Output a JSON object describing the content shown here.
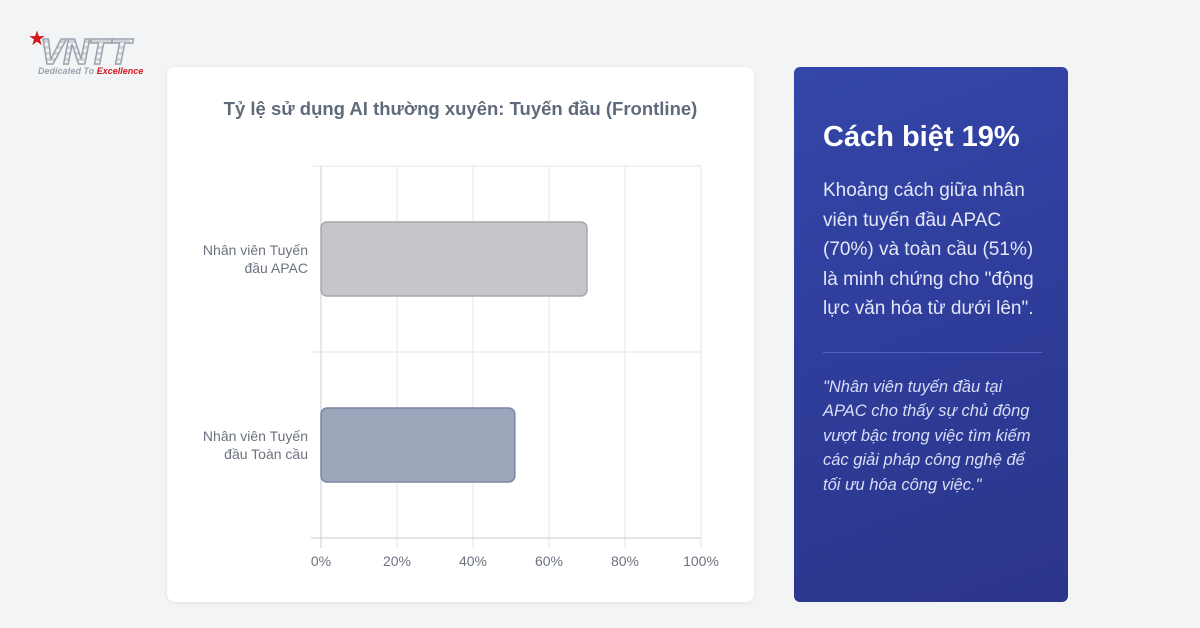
{
  "logo": {
    "wordmark": "VNTT",
    "tagline_part1": "Dedicated To ",
    "tagline_part2": "Excellence"
  },
  "chart_data": {
    "type": "bar",
    "orientation": "horizontal",
    "title": "Tỷ lệ sử dụng AI thường xuyên: Tuyến đầu (Frontline)",
    "categories": [
      [
        "Nhân viên Tuyến",
        "đầu APAC"
      ],
      [
        "Nhân viên Tuyến",
        "đầu Toàn cầu"
      ]
    ],
    "values": [
      70,
      51
    ],
    "bar_colors": [
      "#c4c6c9",
      "#9ea6bb"
    ],
    "bar_stroke_colors": [
      "#a6a8ab",
      "#7d86a2"
    ],
    "xlim": [
      0,
      100
    ],
    "xticks": [
      "0%",
      "20%",
      "40%",
      "60%",
      "80%",
      "100%"
    ],
    "grid": true,
    "legend": "none",
    "xlabel": "",
    "ylabel": ""
  },
  "panel": {
    "heading": "Cách biệt 19%",
    "body": "Khoảng cách giữa nhân viên tuyến đầu APAC (70%) và toàn cầu (51%) là minh chứng cho \"động lực văn hóa từ dưới lên\".",
    "quote": "\"Nhân viên tuyến đầu tại APAC cho thấy sự chủ động vượt bậc trong việc tìm kiếm các giải pháp công nghệ để tối ưu hóa công việc.\""
  },
  "colors": {
    "page_bg": "#f3f4f6",
    "panel_gradient_start": "#3446a8",
    "panel_gradient_end": "#2b368a",
    "brand_red": "#d6161e"
  }
}
